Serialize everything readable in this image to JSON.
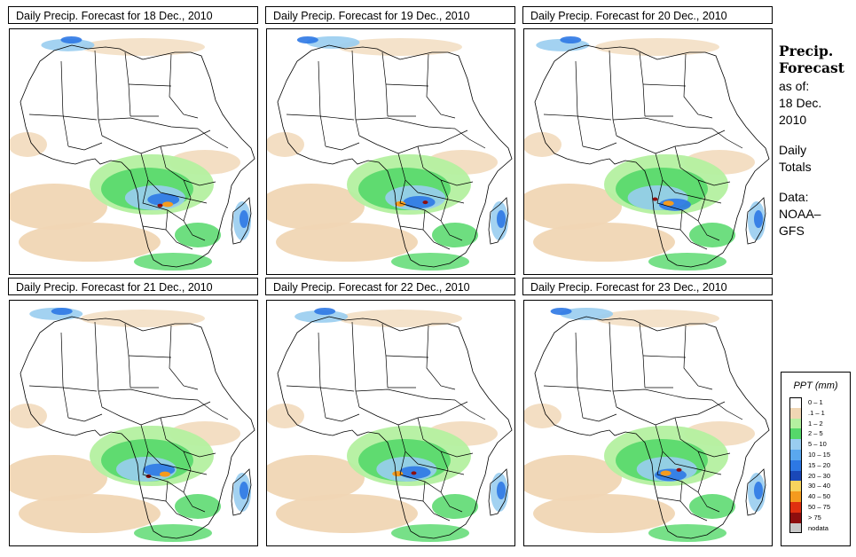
{
  "panels": [
    {
      "title": "Daily Precip. Forecast for  18 Dec., 2010"
    },
    {
      "title": "Daily Precip. Forecast for  19 Dec., 2010"
    },
    {
      "title": "Daily Precip. Forecast for  20 Dec., 2010"
    },
    {
      "title": "Daily Precip. Forecast for  21 Dec., 2010"
    },
    {
      "title": "Daily Precip. Forecast for  22 Dec., 2010"
    },
    {
      "title": "Daily Precip. Forecast for  23 Dec., 2010"
    }
  ],
  "side": {
    "heading1": "Precip.",
    "heading2": "Forecast",
    "line1": "as of:",
    "line2": "18 Dec.",
    "line3": "2010",
    "line4": "Daily",
    "line5": "Totals",
    "line6": "Data:",
    "line7": "NOAA–",
    "line8": "GFS"
  },
  "legend": {
    "title": "PPT (mm)",
    "items": [
      {
        "label": "0 – 1",
        "color": "#ffffff"
      },
      {
        "label": ".1 – 1",
        "color": "#f0d6b4"
      },
      {
        "label": "1 – 2",
        "color": "#b4f0a0"
      },
      {
        "label": "2 – 5",
        "color": "#55d86a"
      },
      {
        "label": "5 – 10",
        "color": "#99cdf0"
      },
      {
        "label": "10 – 15",
        "color": "#5aa8ee"
      },
      {
        "label": "15 – 20",
        "color": "#2d78e4"
      },
      {
        "label": "20 – 30",
        "color": "#1a48b8"
      },
      {
        "label": "30 – 40",
        "color": "#f7d45e"
      },
      {
        "label": "40 – 50",
        "color": "#f59b1e"
      },
      {
        "label": "50 – 75",
        "color": "#e03010"
      },
      {
        "label": "> 75",
        "color": "#8e0e0e"
      },
      {
        "label": "nodata",
        "color": "#c8c8c8"
      }
    ]
  },
  "colors": {
    "light": "#f0d6b4",
    "green_light": "#b4f0a0",
    "green": "#55d86a",
    "blue_light": "#99cdf0",
    "blue": "#2d78e4",
    "blue_dark": "#1a48b8",
    "orange": "#f59b1e",
    "red": "#e03010",
    "dark_red": "#8e0e0e",
    "border": "#000000"
  }
}
